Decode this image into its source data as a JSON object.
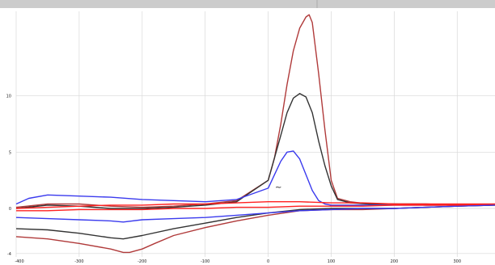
{
  "chart_data": {
    "type": "line",
    "title": "",
    "xlabel": "",
    "ylabel": "",
    "xlim": [
      -400,
      360
    ],
    "ylim": [
      -4.3,
      17.5
    ],
    "grid": true,
    "legend": "none",
    "x_ticks": [
      {
        "value": -400,
        "label": "-400"
      },
      {
        "value": -300,
        "label": "-300"
      },
      {
        "value": -200,
        "label": "-200"
      },
      {
        "value": -100,
        "label": "-100"
      },
      {
        "value": 0,
        "label": "0"
      },
      {
        "value": 100,
        "label": "100"
      },
      {
        "value": 200,
        "label": "200"
      },
      {
        "value": 300,
        "label": "300"
      }
    ],
    "y_ticks": [
      {
        "value": -4,
        "label": "-4"
      },
      {
        "value": 0,
        "label": "0"
      },
      {
        "value": 5,
        "label": "5"
      },
      {
        "value": 10,
        "label": "10"
      }
    ],
    "annotation": "~",
    "colors": {
      "dark_red": "#b03a3a",
      "black": "#333333",
      "blue": "#3a3aee",
      "red": "#ff2020",
      "grid": "#d8d8d8",
      "toolbar": "#cccccc"
    },
    "series": [
      {
        "color": "#b03a3a",
        "x": [
          -400,
          -350,
          -300,
          -250,
          -200,
          -150,
          -100,
          -50,
          0,
          10,
          20,
          30,
          40,
          50,
          60,
          65,
          70,
          80,
          90,
          100,
          110,
          130,
          160,
          200,
          250,
          300,
          350,
          360,
          300,
          250,
          200,
          150,
          100,
          50,
          0,
          -50,
          -100,
          -150,
          -180,
          -200,
          -220,
          -230,
          -250,
          -300,
          -350,
          -400
        ],
        "y": [
          0.1,
          0.4,
          0.4,
          0.2,
          0.1,
          0.2,
          0.4,
          0.7,
          2.5,
          4.5,
          7.5,
          11.0,
          14.0,
          16.0,
          17.0,
          17.2,
          16.5,
          12.0,
          7.0,
          2.5,
          0.9,
          0.6,
          0.4,
          0.4,
          0.3,
          0.3,
          0.3,
          0.3,
          0.2,
          0.1,
          0.0,
          -0.1,
          -0.1,
          -0.2,
          -0.6,
          -1.1,
          -1.7,
          -2.4,
          -3.1,
          -3.6,
          -3.9,
          -3.9,
          -3.6,
          -3.1,
          -2.7,
          -2.5
        ]
      },
      {
        "color": "#333333",
        "x": [
          -400,
          -350,
          -300,
          -250,
          -200,
          -150,
          -100,
          -50,
          0,
          10,
          20,
          30,
          40,
          50,
          60,
          70,
          80,
          90,
          100,
          110,
          130,
          160,
          200,
          250,
          300,
          350,
          360,
          300,
          250,
          200,
          150,
          100,
          50,
          0,
          -50,
          -100,
          -150,
          -200,
          -230,
          -250,
          -300,
          -350,
          -400
        ],
        "y": [
          0.0,
          0.3,
          0.2,
          0.0,
          0.0,
          0.1,
          0.3,
          0.6,
          2.5,
          4.5,
          6.5,
          8.5,
          9.8,
          10.2,
          9.9,
          8.5,
          6.0,
          3.8,
          2.0,
          0.8,
          0.5,
          0.4,
          0.4,
          0.4,
          0.3,
          0.3,
          0.3,
          0.2,
          0.1,
          0.0,
          0.0,
          0.0,
          -0.1,
          -0.4,
          -0.8,
          -1.3,
          -1.8,
          -2.4,
          -2.7,
          -2.6,
          -2.2,
          -1.9,
          -1.8
        ]
      },
      {
        "color": "#3a3aee",
        "x": [
          -400,
          -380,
          -350,
          -300,
          -250,
          -200,
          -150,
          -100,
          -50,
          0,
          10,
          20,
          30,
          40,
          50,
          60,
          70,
          80,
          90,
          100,
          150,
          200,
          250,
          300,
          350,
          360,
          300,
          250,
          200,
          150,
          100,
          50,
          0,
          -50,
          -100,
          -150,
          -200,
          -230,
          -250,
          -300,
          -350,
          -400
        ],
        "y": [
          0.4,
          0.9,
          1.2,
          1.1,
          1.0,
          0.8,
          0.7,
          0.6,
          0.8,
          1.8,
          3.0,
          4.2,
          5.0,
          5.1,
          4.4,
          3.0,
          1.6,
          0.7,
          0.4,
          0.3,
          0.3,
          0.3,
          0.3,
          0.3,
          0.3,
          0.3,
          0.2,
          0.1,
          0.0,
          0.0,
          -0.1,
          -0.2,
          -0.4,
          -0.6,
          -0.8,
          -0.9,
          -1.0,
          -1.2,
          -1.1,
          -1.0,
          -0.9,
          -0.8
        ]
      },
      {
        "color": "#ff2020",
        "x": [
          -400,
          -350,
          -300,
          -250,
          -200,
          -150,
          -100,
          -50,
          0,
          50,
          100,
          150,
          200,
          250,
          300,
          360,
          300,
          250,
          200,
          150,
          100,
          50,
          0,
          -50,
          -100,
          -150,
          -200,
          -250,
          -300,
          -350,
          -400
        ],
        "y": [
          0.0,
          0.1,
          0.2,
          0.3,
          0.3,
          0.4,
          0.4,
          0.5,
          0.6,
          0.6,
          0.5,
          0.5,
          0.4,
          0.4,
          0.4,
          0.4,
          0.3,
          0.3,
          0.3,
          0.2,
          0.2,
          0.2,
          0.1,
          0.1,
          0.0,
          0.0,
          -0.1,
          -0.1,
          -0.1,
          -0.2,
          -0.2
        ]
      }
    ]
  }
}
